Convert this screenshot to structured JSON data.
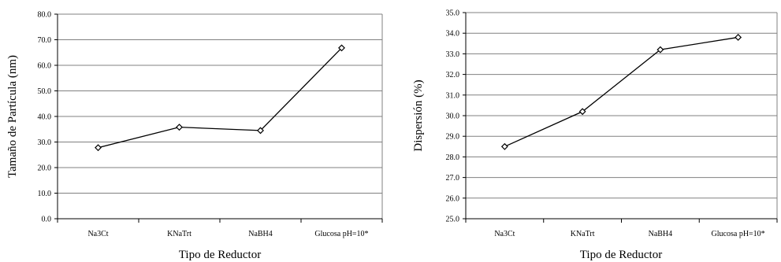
{
  "chart_data": [
    {
      "type": "line",
      "title": "",
      "xlabel": "Tipo de Reductor",
      "ylabel": "Tamaño de Partícula (nm)",
      "categories": [
        "Na3Ct",
        "KNaTrt",
        "NaBH4",
        "Glucosa pH=10*"
      ],
      "series": [
        {
          "values": [
            27.8,
            35.8,
            34.5,
            66.8
          ]
        }
      ],
      "ylim": [
        0,
        80
      ],
      "ystep": 10,
      "tick_labels": [
        "0.0",
        "10.0",
        "20.0",
        "30.0",
        "40.0",
        "50.0",
        "60.0",
        "70.0",
        "80.0"
      ],
      "grid": true,
      "legend": "none",
      "marker": "diamond",
      "colors": {
        "line": "#000000",
        "grid": "#808080",
        "marker_fill": "#ffffff"
      }
    },
    {
      "type": "line",
      "title": "",
      "xlabel": "Tipo de Reductor",
      "ylabel": "Dispersión (%)",
      "categories": [
        "Na3Ct",
        "KNaTrt",
        "NaBH4",
        "Glucosa pH=10*"
      ],
      "series": [
        {
          "values": [
            28.5,
            30.2,
            33.2,
            33.8
          ]
        }
      ],
      "ylim": [
        25,
        35
      ],
      "ystep": 1,
      "tick_labels": [
        "25.0",
        "26.0",
        "27.0",
        "28.0",
        "29.0",
        "30.0",
        "31.0",
        "32.0",
        "33.0",
        "34.0",
        "35.0"
      ],
      "grid": true,
      "legend": "none",
      "marker": "diamond",
      "colors": {
        "line": "#000000",
        "grid": "#808080",
        "marker_fill": "#ffffff"
      }
    }
  ]
}
